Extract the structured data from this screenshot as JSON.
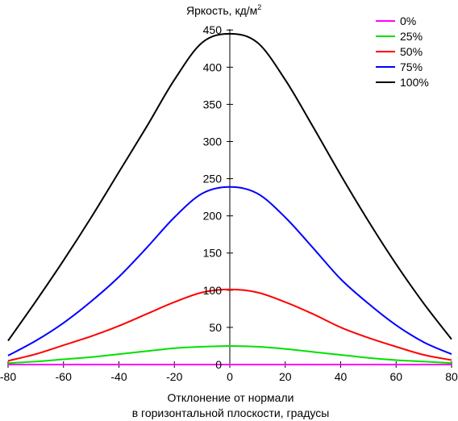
{
  "chart_data": {
    "type": "line",
    "title": "",
    "ylabel_main": "Яркость, кд/м",
    "ylabel_sup": "2",
    "xlabel_line1": "Отклонение от нормали",
    "xlabel_line2": "в горизонтальной плоскости, градусы",
    "xlim": [
      -80,
      80
    ],
    "ylim": [
      0,
      460
    ],
    "x_ticks": [
      -80,
      -60,
      -40,
      -20,
      0,
      20,
      40,
      60,
      80
    ],
    "y_ticks": [
      0,
      50,
      100,
      150,
      200,
      250,
      300,
      350,
      400,
      450
    ],
    "grid": false,
    "legend_position": "top-right",
    "x": [
      -80,
      -70,
      -60,
      -50,
      -40,
      -30,
      -20,
      -10,
      0,
      10,
      20,
      30,
      40,
      50,
      60,
      70,
      80
    ],
    "series": [
      {
        "name": "0%",
        "color": "#ff00ff",
        "values": [
          0,
          0,
          0,
          0,
          0,
          0,
          0,
          0,
          0,
          0,
          0,
          0,
          0,
          0,
          0,
          0,
          0
        ]
      },
      {
        "name": "25%",
        "color": "#00e000",
        "values": [
          2,
          4,
          7,
          10,
          14,
          18,
          22,
          24,
          25,
          24,
          21,
          17,
          13,
          9,
          6,
          4,
          2
        ]
      },
      {
        "name": "50%",
        "color": "#ff0000",
        "values": [
          5,
          14,
          26,
          38,
          52,
          68,
          84,
          97,
          101,
          97,
          84,
          68,
          50,
          36,
          24,
          13,
          6
        ]
      },
      {
        "name": "75%",
        "color": "#0000ff",
        "values": [
          12,
          32,
          56,
          85,
          118,
          157,
          198,
          230,
          239,
          230,
          198,
          157,
          115,
          82,
          53,
          30,
          14
        ]
      },
      {
        "name": "100%",
        "color": "#000000",
        "values": [
          32,
          85,
          140,
          198,
          259,
          320,
          383,
          433,
          445,
          433,
          383,
          320,
          255,
          193,
          135,
          82,
          34
        ]
      }
    ]
  }
}
